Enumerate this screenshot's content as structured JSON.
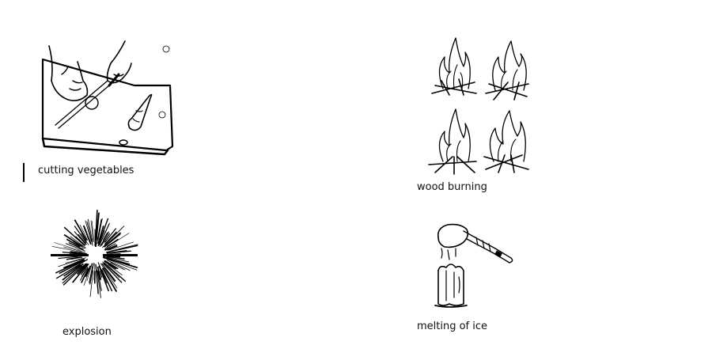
{
  "panels": {
    "cutting": {
      "caption": "cutting vegetables",
      "icon": "cutting-vegetables-icon"
    },
    "wood": {
      "caption": "wood burning",
      "icon": "wood-fire-icon"
    },
    "explosion": {
      "caption": "explosion",
      "icon": "explosion-icon"
    },
    "ice": {
      "caption": "melting of ice",
      "icon": "melting-ice-icon"
    }
  }
}
